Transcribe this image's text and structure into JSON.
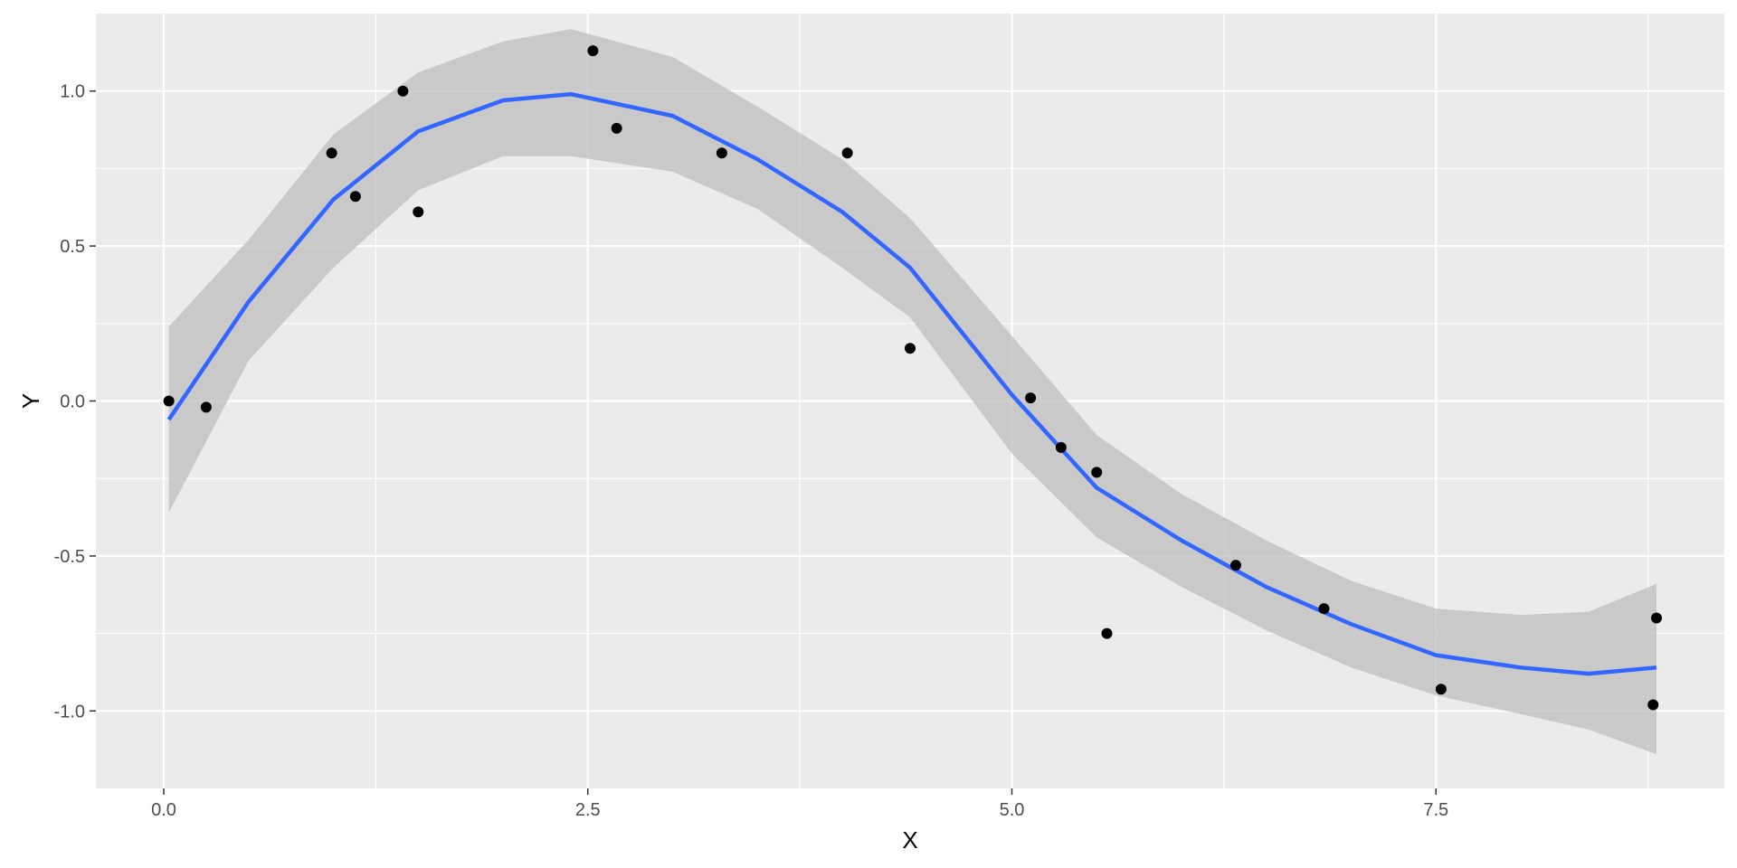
{
  "chart_data": {
    "type": "scatter",
    "xlabel": "X",
    "ylabel": "Y",
    "xlim": [
      -0.4,
      9.2
    ],
    "ylim": [
      -1.25,
      1.25
    ],
    "x_ticks": [
      0.0,
      2.5,
      5.0,
      7.5
    ],
    "x_tick_labels": [
      "0.0",
      "2.5",
      "5.0",
      "7.5"
    ],
    "y_ticks": [
      -1.0,
      -0.5,
      0.0,
      0.5,
      1.0
    ],
    "y_tick_labels": [
      "-1.0",
      "-0.5",
      "0.0",
      "0.5",
      "1.0"
    ],
    "grid": true,
    "colors": {
      "panel": "#ebebeb",
      "grid": "#ffffff",
      "points": "#000000",
      "smooth_line": "#3366ff",
      "ribbon": "#bdbdbd"
    },
    "points": {
      "x": [
        0.03,
        0.25,
        0.99,
        1.13,
        1.41,
        1.5,
        2.53,
        2.67,
        3.29,
        4.03,
        4.4,
        5.11,
        5.29,
        5.5,
        5.56,
        6.32,
        6.84,
        7.53,
        8.78,
        8.8
      ],
      "y": [
        0.0,
        -0.02,
        0.8,
        0.66,
        1.0,
        0.61,
        1.13,
        0.88,
        0.8,
        0.8,
        0.17,
        0.01,
        -0.15,
        -0.23,
        -0.75,
        -0.53,
        -0.67,
        -0.93,
        -0.98,
        -0.7
      ]
    },
    "smooth": {
      "x": [
        0.03,
        0.5,
        1.0,
        1.5,
        2.0,
        2.4,
        3.0,
        3.5,
        4.0,
        4.4,
        5.0,
        5.5,
        6.0,
        6.5,
        7.0,
        7.5,
        8.0,
        8.4,
        8.8
      ],
      "y": [
        -0.06,
        0.32,
        0.65,
        0.87,
        0.97,
        0.99,
        0.92,
        0.78,
        0.61,
        0.43,
        0.02,
        -0.28,
        -0.45,
        -0.6,
        -0.72,
        -0.82,
        -0.86,
        -0.88,
        -0.86
      ],
      "lower": [
        -0.36,
        0.13,
        0.43,
        0.68,
        0.79,
        0.79,
        0.74,
        0.62,
        0.43,
        0.27,
        -0.17,
        -0.44,
        -0.6,
        -0.74,
        -0.86,
        -0.95,
        -1.01,
        -1.06,
        -1.14
      ],
      "upper": [
        0.24,
        0.52,
        0.86,
        1.06,
        1.16,
        1.2,
        1.11,
        0.95,
        0.78,
        0.59,
        0.21,
        -0.11,
        -0.3,
        -0.45,
        -0.58,
        -0.67,
        -0.69,
        -0.68,
        -0.59
      ]
    }
  }
}
